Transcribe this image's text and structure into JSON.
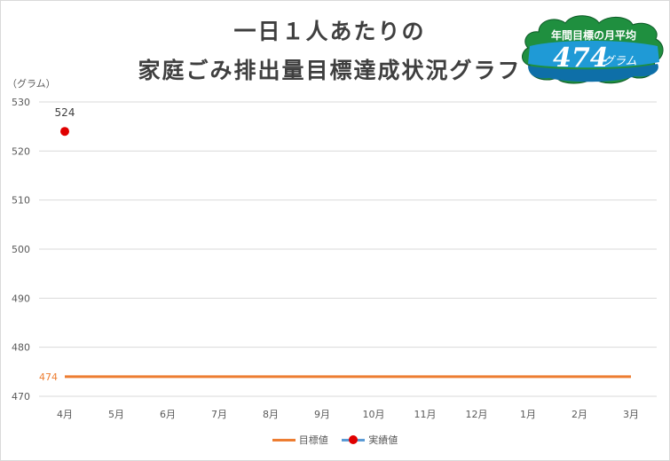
{
  "title": {
    "line1": "一日１人あたりの",
    "line2": "家庭ごみ排出量目標達成状況グラフ"
  },
  "badge": {
    "title": "年間目標の月平均",
    "value": "474",
    "unit": "グラム"
  },
  "colors": {
    "target": "#ed7d31",
    "actual": "#e00000",
    "actual_line": "#5b9bd5",
    "grid": "#d9d9d9",
    "text": "#595959",
    "badge_blue": "#1f9ad6",
    "badge_green": "#1f8f3f"
  },
  "chart_data": {
    "type": "line",
    "ylabel": "（グラム）",
    "ylim": [
      470,
      530
    ],
    "yticks": [
      "470",
      "480",
      "490",
      "500",
      "510",
      "520",
      "530"
    ],
    "categories": [
      "4月",
      "5月",
      "6月",
      "7月",
      "8月",
      "9月",
      "10月",
      "11月",
      "12月",
      "1月",
      "2月",
      "3月"
    ],
    "series": [
      {
        "name": "目標値",
        "values": [
          474,
          474,
          474,
          474,
          474,
          474,
          474,
          474,
          474,
          474,
          474,
          474
        ],
        "label": "474"
      },
      {
        "name": "実績値",
        "values": [
          524,
          null,
          null,
          null,
          null,
          null,
          null,
          null,
          null,
          null,
          null,
          null
        ],
        "label": "524"
      }
    ],
    "legend": "bottom",
    "grid": true
  }
}
